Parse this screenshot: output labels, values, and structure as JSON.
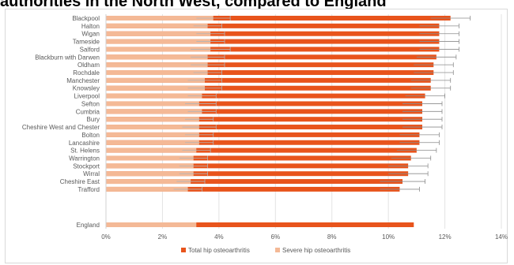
{
  "chart_data": {
    "type": "bar",
    "orientation": "horizontal",
    "title": "authorities in the North West, compared to England",
    "xlabel": "",
    "ylabel": "",
    "xlim": [
      0,
      14
    ],
    "x_ticks": [
      "0%",
      "2%",
      "4%",
      "6%",
      "8%",
      "10%",
      "12%",
      "14%"
    ],
    "grid": true,
    "legend_position": "bottom",
    "categories": [
      "Blackpool",
      "Halton",
      "Wigan",
      "Tameside",
      "Salford",
      "Blackburn with Darwen",
      "Oldham",
      "Rochdale",
      "Manchester",
      "Knowsley",
      "Liverpool",
      "Sefton",
      "Cumbria",
      "Bury",
      "Cheshire West and Chester",
      "Bolton",
      "Lancashire",
      "St. Helens",
      "Warrington",
      "Stockport",
      "Wirral",
      "Cheshire East",
      "Trafford",
      "England"
    ],
    "series": [
      {
        "name": "Total hip osteoarthritis",
        "color": "#e8541c",
        "values": [
          12.2,
          11.8,
          11.8,
          11.8,
          11.8,
          11.7,
          11.6,
          11.6,
          11.5,
          11.5,
          11.3,
          11.2,
          11.2,
          11.2,
          11.2,
          11.1,
          11.1,
          11.0,
          10.8,
          10.7,
          10.7,
          10.5,
          10.4,
          10.9
        ],
        "error_upper": [
          12.9,
          12.5,
          12.5,
          12.5,
          12.5,
          12.4,
          12.3,
          12.3,
          12.2,
          12.2,
          12.0,
          11.9,
          11.9,
          11.9,
          11.9,
          11.8,
          11.8,
          11.7,
          11.5,
          11.4,
          11.4,
          11.3,
          11.1,
          null
        ],
        "error_lower": [
          11.5,
          11.1,
          11.1,
          11.1,
          11.1,
          11.0,
          10.9,
          10.9,
          10.8,
          10.8,
          10.6,
          10.5,
          10.5,
          10.5,
          10.5,
          10.4,
          10.4,
          10.3,
          10.1,
          10.0,
          10.0,
          9.7,
          9.7,
          null
        ]
      },
      {
        "name": "Severe hip osteoarthritis",
        "color": "#f4b996",
        "values": [
          3.8,
          3.6,
          3.7,
          3.7,
          3.7,
          3.6,
          3.6,
          3.6,
          3.5,
          3.5,
          3.4,
          3.3,
          3.4,
          3.3,
          3.3,
          3.3,
          3.3,
          3.2,
          3.1,
          3.1,
          3.1,
          3.0,
          2.9,
          3.2
        ],
        "error_upper": [
          4.4,
          4.1,
          4.2,
          4.2,
          4.4,
          4.2,
          4.2,
          4.1,
          4.1,
          4.1,
          3.9,
          3.9,
          3.9,
          3.8,
          3.9,
          3.8,
          3.8,
          3.7,
          3.6,
          3.6,
          3.6,
          3.5,
          3.4,
          null
        ],
        "error_lower": [
          3.2,
          3.1,
          3.2,
          3.2,
          3.0,
          3.0,
          3.0,
          3.1,
          2.9,
          2.9,
          2.9,
          2.8,
          2.9,
          2.8,
          2.7,
          2.8,
          2.8,
          2.7,
          2.6,
          2.6,
          2.6,
          2.5,
          2.4,
          null
        ]
      }
    ]
  }
}
